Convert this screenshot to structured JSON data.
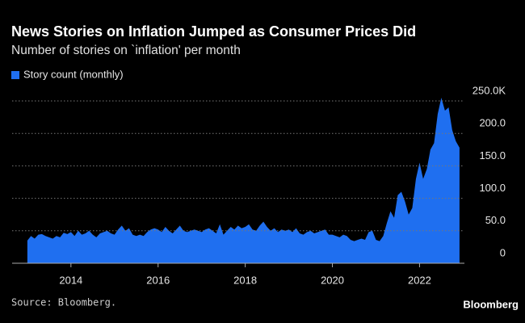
{
  "chart_data": {
    "type": "area",
    "title": "News Stories on Inflation Jumped as Consumer Prices Did",
    "subtitle": "Number of stories on `inflation' per month",
    "source": "Source: Bloomberg.",
    "brand": "Bloomberg",
    "x": [
      2013,
      2013.083,
      2013.167,
      2013.25,
      2013.333,
      2013.417,
      2013.5,
      2013.583,
      2013.667,
      2013.75,
      2013.833,
      2013.917,
      2014,
      2014.083,
      2014.167,
      2014.25,
      2014.333,
      2014.417,
      2014.5,
      2014.583,
      2014.667,
      2014.75,
      2014.833,
      2014.917,
      2015,
      2015.083,
      2015.167,
      2015.25,
      2015.333,
      2015.417,
      2015.5,
      2015.583,
      2015.667,
      2015.75,
      2015.833,
      2015.917,
      2016,
      2016.083,
      2016.167,
      2016.25,
      2016.333,
      2016.417,
      2016.5,
      2016.583,
      2016.667,
      2016.75,
      2016.833,
      2016.917,
      2017,
      2017.083,
      2017.167,
      2017.25,
      2017.333,
      2017.417,
      2017.5,
      2017.583,
      2017.667,
      2017.75,
      2017.833,
      2017.917,
      2018,
      2018.083,
      2018.167,
      2018.25,
      2018.333,
      2018.417,
      2018.5,
      2018.583,
      2018.667,
      2018.75,
      2018.833,
      2018.917,
      2019,
      2019.083,
      2019.167,
      2019.25,
      2019.333,
      2019.417,
      2019.5,
      2019.583,
      2019.667,
      2019.75,
      2019.833,
      2019.917,
      2020,
      2020.083,
      2020.167,
      2020.25,
      2020.333,
      2020.417,
      2020.5,
      2020.583,
      2020.667,
      2020.75,
      2020.833,
      2020.917,
      2021,
      2021.083,
      2021.167,
      2021.25,
      2021.333,
      2021.417,
      2021.5,
      2021.583,
      2021.667,
      2021.75,
      2021.833,
      2021.917,
      2022,
      2022.083,
      2022.167,
      2022.25,
      2022.333,
      2022.417,
      2022.5,
      2022.583,
      2022.667,
      2022.75,
      2022.833,
      2022.917
    ],
    "series": [
      {
        "name": "Story count (monthly)",
        "color": "#1f6ff0",
        "values": [
          35,
          42,
          38,
          44,
          45,
          42,
          40,
          38,
          42,
          40,
          47,
          45,
          48,
          42,
          50,
          44,
          46,
          50,
          44,
          40,
          46,
          48,
          50,
          46,
          44,
          52,
          58,
          50,
          54,
          44,
          42,
          44,
          42,
          48,
          52,
          54,
          52,
          48,
          56,
          50,
          46,
          52,
          58,
          50,
          48,
          50,
          52,
          50,
          48,
          52,
          54,
          50,
          46,
          60,
          44,
          50,
          56,
          52,
          58,
          54,
          56,
          60,
          52,
          50,
          58,
          64,
          56,
          50,
          54,
          48,
          52,
          50,
          52,
          48,
          54,
          46,
          44,
          48,
          50,
          46,
          48,
          50,
          52,
          44,
          44,
          42,
          40,
          44,
          42,
          36,
          34,
          36,
          38,
          36,
          48,
          50,
          36,
          34,
          42,
          62,
          80,
          70,
          105,
          110,
          95,
          75,
          85,
          130,
          155,
          130,
          145,
          175,
          185,
          230,
          255,
          235,
          240,
          205,
          188,
          178
        ]
      }
    ],
    "xlim": [
      2012.65,
      2023.03
    ],
    "xticks": [
      2014,
      2016,
      2018,
      2020,
      2022
    ],
    "ylim": [
      0,
      250
    ],
    "yticks": [
      0,
      {
        "value": 50,
        "label": "50.0"
      },
      {
        "value": 100,
        "label": "100.0"
      },
      {
        "value": 150,
        "label": "150.0"
      },
      {
        "value": 200,
        "label": "200.0"
      },
      {
        "value": 250,
        "label": "250.0K"
      }
    ],
    "grid": true
  }
}
